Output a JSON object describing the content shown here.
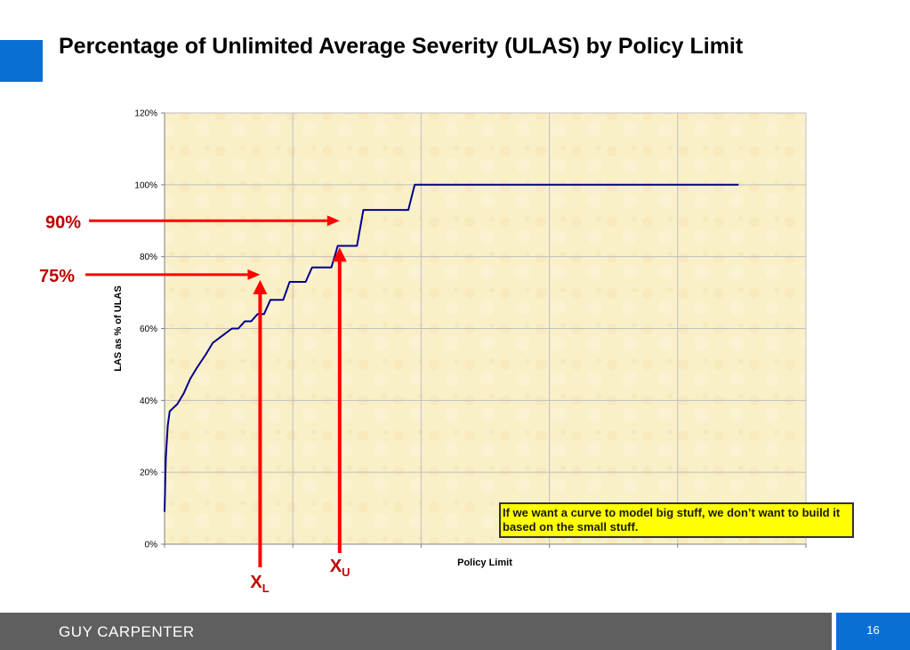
{
  "slide": {
    "title": "Percentage of Unlimited Average Severity (ULAS) by Policy Limit",
    "footer_brand": "GUY CARPENTER",
    "page_number": "16",
    "accent_color": "#0a6fd4",
    "footer_color": "#5f5f5f"
  },
  "callout": {
    "text": "If we want a curve to model big stuff, we don’t want to build it based on the small stuff."
  },
  "annotations": {
    "label_90": "90%",
    "label_75": "75%",
    "xl_base": "X",
    "xl_sub": "L",
    "xu_base": "X",
    "xu_sub": "U",
    "arrow_color": "#ff0000",
    "label_color": "#c00000",
    "y_90": 0.9,
    "y_75": 0.75
  },
  "chart_data": {
    "type": "line",
    "title": "",
    "xlabel": "Policy Limit",
    "ylabel": "LAS as % of ULAS",
    "ylim": [
      0,
      1.2
    ],
    "xlim": [
      0,
      100
    ],
    "yticks": [
      0,
      0.2,
      0.4,
      0.6,
      0.8,
      1.0,
      1.2
    ],
    "ytick_labels": [
      "0%",
      "20%",
      "40%",
      "60%",
      "80%",
      "100%",
      "120%"
    ],
    "grid": true,
    "line_color": "#00008b",
    "plot_background": "#faf0c8",
    "x_markers": {
      "XL": 14.9,
      "XU": 27.3
    },
    "series": [
      {
        "values": [
          [
            0,
            0.09
          ],
          [
            0.2,
            0.24
          ],
          [
            0.5,
            0.33
          ],
          [
            0.8,
            0.37
          ],
          [
            2,
            0.39
          ],
          [
            3,
            0.42
          ],
          [
            4,
            0.46
          ],
          [
            5,
            0.49
          ],
          [
            6.5,
            0.53
          ],
          [
            7.5,
            0.56
          ],
          [
            9,
            0.58
          ],
          [
            10.5,
            0.6
          ],
          [
            11.5,
            0.6
          ],
          [
            12.5,
            0.62
          ],
          [
            13.5,
            0.62
          ],
          [
            14.5,
            0.64
          ],
          [
            15.5,
            0.64
          ],
          [
            16.5,
            0.68
          ],
          [
            18.5,
            0.68
          ],
          [
            19.5,
            0.73
          ],
          [
            22,
            0.73
          ],
          [
            23,
            0.77
          ],
          [
            26,
            0.77
          ],
          [
            27,
            0.83
          ],
          [
            30,
            0.83
          ],
          [
            31,
            0.93
          ],
          [
            38,
            0.93
          ],
          [
            39,
            1.0
          ],
          [
            50,
            1.0
          ],
          [
            65,
            1.0
          ],
          [
            89.5,
            1.0
          ]
        ]
      }
    ]
  }
}
